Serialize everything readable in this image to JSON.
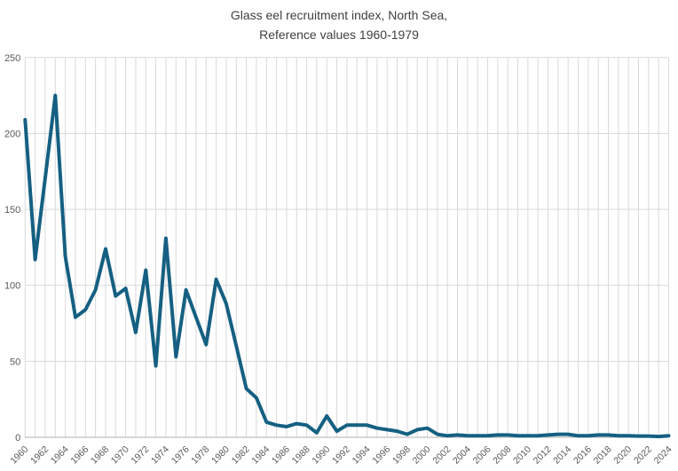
{
  "chart_data": {
    "type": "line",
    "title_line1": "Glass eel recruitment index, North Sea,",
    "title_line2": "Reference values 1960-1979",
    "xlabel": "",
    "ylabel": "",
    "x_start": 1960,
    "x_end": 2024,
    "ylim": [
      0,
      250
    ],
    "grid": "both",
    "legend": "none",
    "y_ticks": [
      0,
      50,
      100,
      150,
      200,
      250
    ],
    "x_ticks": [
      1960,
      1962,
      1964,
      1966,
      1968,
      1970,
      1972,
      1974,
      1976,
      1978,
      1980,
      1982,
      1984,
      1986,
      1988,
      1990,
      1992,
      1994,
      1996,
      1998,
      2000,
      2002,
      2004,
      2006,
      2008,
      2010,
      2012,
      2014,
      2016,
      2018,
      2020,
      2022,
      2024
    ],
    "series": [
      {
        "name": "Glass eel recruitment index",
        "x": [
          1960,
          1961,
          1962,
          1963,
          1964,
          1965,
          1966,
          1967,
          1968,
          1969,
          1970,
          1971,
          1972,
          1973,
          1974,
          1975,
          1976,
          1977,
          1978,
          1979,
          1980,
          1981,
          1982,
          1983,
          1984,
          1985,
          1986,
          1987,
          1988,
          1989,
          1990,
          1991,
          1992,
          1993,
          1994,
          1995,
          1996,
          1997,
          1998,
          1999,
          2000,
          2001,
          2002,
          2003,
          2004,
          2005,
          2006,
          2007,
          2008,
          2009,
          2010,
          2011,
          2012,
          2013,
          2014,
          2015,
          2016,
          2017,
          2018,
          2019,
          2020,
          2021,
          2022,
          2023,
          2024
        ],
        "values": [
          209,
          117,
          171,
          225,
          119,
          79,
          84,
          97,
          124,
          93,
          98,
          69,
          110,
          47,
          131,
          53,
          97,
          79,
          61,
          104,
          88,
          60,
          32,
          26,
          10,
          8,
          7,
          9,
          8,
          3,
          14,
          4,
          8,
          8,
          8,
          6,
          5,
          4,
          2,
          5,
          6,
          2,
          1,
          1.5,
          1,
          1,
          1,
          1.5,
          1.5,
          1,
          1,
          1,
          1.5,
          2,
          2,
          1,
          1,
          1.5,
          1.5,
          1,
          1,
          0.8,
          0.8,
          0.5,
          1
        ]
      }
    ],
    "colors": {
      "line": "#156082",
      "grid": "#d9d9d9",
      "axis": "#bfbfbf",
      "tick_label": "#595959",
      "title": "#404040",
      "background": "#ffffff"
    }
  }
}
